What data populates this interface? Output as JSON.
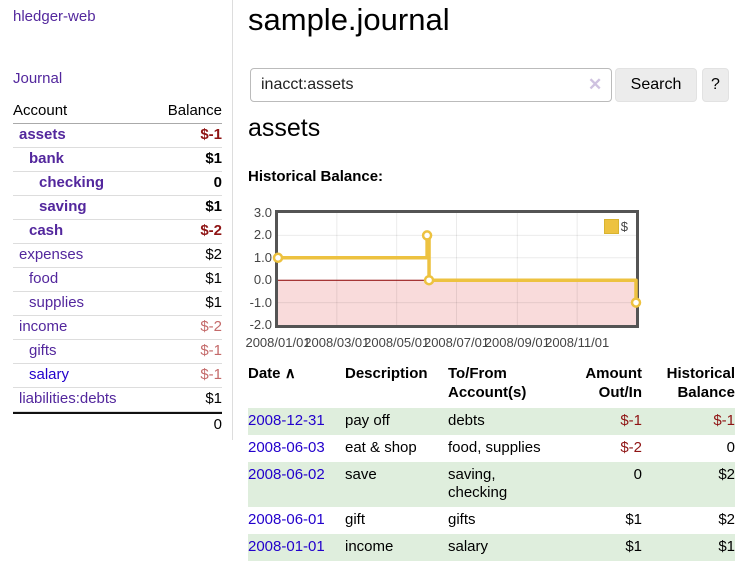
{
  "app": {
    "brand": "hledger-web"
  },
  "sidebar": {
    "nav_journal": "Journal",
    "accounts_table": {
      "headers": {
        "account": "Account",
        "balance": "Balance"
      },
      "rows": [
        {
          "name": "assets",
          "balance": "$-1"
        },
        {
          "name": "bank",
          "balance": "$1"
        },
        {
          "name": "checking",
          "balance": "0"
        },
        {
          "name": "saving",
          "balance": "$1"
        },
        {
          "name": "cash",
          "balance": "$-2"
        },
        {
          "name": "expenses",
          "balance": "$2"
        },
        {
          "name": "food",
          "balance": "$1"
        },
        {
          "name": "supplies",
          "balance": "$1"
        },
        {
          "name": "income",
          "balance": "$-2"
        },
        {
          "name": "gifts",
          "balance": "$-1"
        },
        {
          "name": "salary",
          "balance": "$-1"
        },
        {
          "name": "liabilities:debts",
          "balance": "$1"
        }
      ],
      "total": "0"
    }
  },
  "main": {
    "title": "sample.journal",
    "search": {
      "value": "inacct:assets",
      "clear_label": "✕",
      "button_label": "Search",
      "help_label": "?"
    },
    "account_heading": "assets",
    "chart_heading": "Historical Balance:"
  },
  "chart_data": {
    "type": "line",
    "step": true,
    "title": "Historical Balance",
    "series": [
      {
        "name": "$",
        "color": "#edc240",
        "points": [
          [
            "2008-01-01",
            1
          ],
          [
            "2008-06-01",
            2
          ],
          [
            "2008-06-03",
            0
          ],
          [
            "2008-12-31",
            -1
          ]
        ]
      }
    ],
    "xlim": [
      "2008-01-01",
      "2008-12-31"
    ],
    "ylim": [
      -2,
      3
    ],
    "yticks": [
      {
        "label": "3.0",
        "value": 3
      },
      {
        "label": "2.0",
        "value": 2
      },
      {
        "label": "1.0",
        "value": 1
      },
      {
        "label": "0.0",
        "value": 0
      },
      {
        "label": "-1.0",
        "value": -1
      },
      {
        "label": "-2.0",
        "value": -2
      }
    ],
    "xticks": [
      {
        "label": "2008/01/01",
        "value": "2008-01-01"
      },
      {
        "label": "2008/03/01",
        "value": "2008-03-01"
      },
      {
        "label": "2008/05/01",
        "value": "2008-05-01"
      },
      {
        "label": "2008/07/01",
        "value": "2008-07-01"
      },
      {
        "label": "2008/09/01",
        "value": "2008-09-01"
      },
      {
        "label": "2008/11/01",
        "value": "2008-11-01"
      }
    ],
    "legend_position": "top-right",
    "grid": true,
    "negative_region": {
      "from": -2,
      "to": 0,
      "fill": "#f9dbdb",
      "line_color": "#8b0000"
    }
  },
  "register_table": {
    "headers": {
      "date": "Date",
      "sort_indicator": "∧",
      "description": "Description",
      "accounts": "To/From Account(s)",
      "amount": "Amount Out/In",
      "balance": "Historical Balance"
    },
    "rows": [
      {
        "date": "2008-12-31",
        "description": "pay off",
        "accounts": "debts",
        "amount": "$-1",
        "balance": "$-1"
      },
      {
        "date": "2008-06-03",
        "description": "eat & shop",
        "accounts": "food, supplies",
        "amount": "$-2",
        "balance": "0"
      },
      {
        "date": "2008-06-02",
        "description": "save",
        "accounts": "saving, checking",
        "amount": "0",
        "balance": "$2"
      },
      {
        "date": "2008-06-01",
        "description": "gift",
        "accounts": "gifts",
        "amount": "$1",
        "balance": "$2"
      },
      {
        "date": "2008-01-01",
        "description": "income",
        "accounts": "salary",
        "amount": "$1",
        "balance": "$1"
      }
    ]
  }
}
